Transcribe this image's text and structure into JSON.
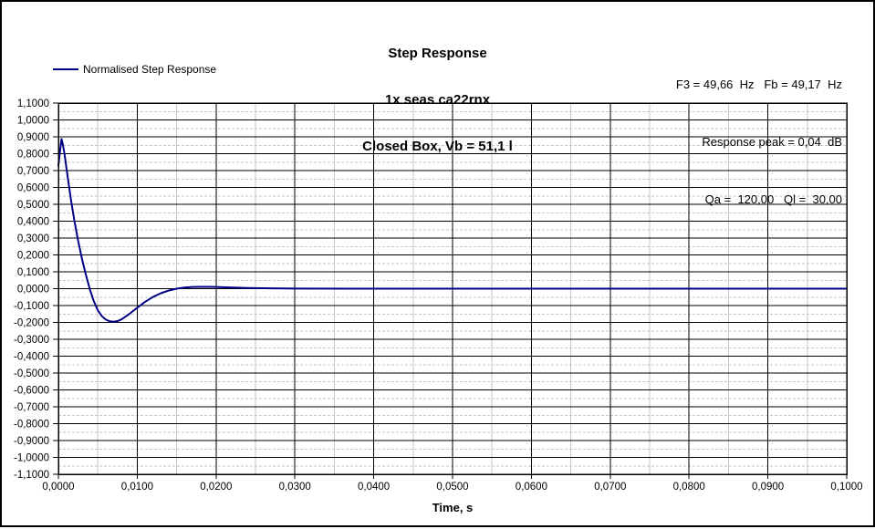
{
  "title": {
    "line1": "Step Response",
    "line2": "1x seas ca22rnx",
    "line3": "Closed Box, Vb = 51,1 l"
  },
  "info": {
    "line1": "F3 = 49,66  Hz   Fb = 49,17  Hz",
    "line2": "Response peak = 0,04  dB",
    "line3": "Qa =  120,00   Ql =  30,00"
  },
  "legend": {
    "label": "Normalised Step Response"
  },
  "colors": {
    "curve": "#000087",
    "grid_major": "#000000",
    "grid_minor": "#c6c6c6",
    "background": "#ffffff"
  },
  "chart_data": {
    "type": "line",
    "title": "Step Response",
    "subtitle1": "1x seas ca22rnx",
    "subtitle2": "Closed Box, Vb = 51,1 l",
    "xlabel": "Time, s",
    "ylabel": "",
    "xlim": [
      0,
      0.1
    ],
    "ylim": [
      -1.1,
      1.1
    ],
    "x_major_step": 0.01,
    "x_minor_step": 0.005,
    "y_major_step": 0.1,
    "y_minor_step": 0.05,
    "grid": true,
    "legend_position": "top-left",
    "x_ticks": [
      {
        "value": 0.0,
        "label": "0,0000"
      },
      {
        "value": 0.01,
        "label": "0,0100"
      },
      {
        "value": 0.02,
        "label": "0,0200"
      },
      {
        "value": 0.03,
        "label": "0,0300"
      },
      {
        "value": 0.04,
        "label": "0,0400"
      },
      {
        "value": 0.05,
        "label": "0,0500"
      },
      {
        "value": 0.06,
        "label": "0,0600"
      },
      {
        "value": 0.07,
        "label": "0,0700"
      },
      {
        "value": 0.08,
        "label": "0,0800"
      },
      {
        "value": 0.09,
        "label": "0,0900"
      },
      {
        "value": 0.1,
        "label": "0,1000"
      }
    ],
    "y_ticks": [
      {
        "value": 1.1,
        "label": "1,1000"
      },
      {
        "value": 1.0,
        "label": "1,0000"
      },
      {
        "value": 0.9,
        "label": "0,9000"
      },
      {
        "value": 0.8,
        "label": "0,8000"
      },
      {
        "value": 0.7,
        "label": "0,7000"
      },
      {
        "value": 0.6,
        "label": "0,6000"
      },
      {
        "value": 0.5,
        "label": "0,5000"
      },
      {
        "value": 0.4,
        "label": "0,4000"
      },
      {
        "value": 0.3,
        "label": "0,3000"
      },
      {
        "value": 0.2,
        "label": "0,2000"
      },
      {
        "value": 0.1,
        "label": "0,1000"
      },
      {
        "value": 0.0,
        "label": "0,0000"
      },
      {
        "value": -0.1,
        "label": "-0,1000"
      },
      {
        "value": -0.2,
        "label": "-0,2000"
      },
      {
        "value": -0.3,
        "label": "-0,3000"
      },
      {
        "value": -0.4,
        "label": "-0,4000"
      },
      {
        "value": -0.5,
        "label": "-0,5000"
      },
      {
        "value": -0.6,
        "label": "-0,6000"
      },
      {
        "value": -0.7,
        "label": "-0,7000"
      },
      {
        "value": -0.8,
        "label": "-0,8000"
      },
      {
        "value": -0.9,
        "label": "-0,9000"
      },
      {
        "value": -1.0,
        "label": "-1,0000"
      },
      {
        "value": -1.1,
        "label": "-1,1000"
      }
    ],
    "series": [
      {
        "name": "Normalised Step Response",
        "color": "#000087",
        "points": [
          [
            0.0,
            0.73
          ],
          [
            0.0002,
            0.812
          ],
          [
            0.0004,
            0.887
          ],
          [
            0.0006,
            0.846
          ],
          [
            0.0008,
            0.79
          ],
          [
            0.0012,
            0.655
          ],
          [
            0.0016,
            0.525
          ],
          [
            0.002,
            0.41
          ],
          [
            0.0025,
            0.285
          ],
          [
            0.003,
            0.175
          ],
          [
            0.0035,
            0.08
          ],
          [
            0.004,
            -0.005
          ],
          [
            0.0045,
            -0.075
          ],
          [
            0.005,
            -0.128
          ],
          [
            0.0055,
            -0.162
          ],
          [
            0.006,
            -0.183
          ],
          [
            0.0065,
            -0.193
          ],
          [
            0.007,
            -0.196
          ],
          [
            0.0075,
            -0.192
          ],
          [
            0.008,
            -0.182
          ],
          [
            0.009,
            -0.15
          ],
          [
            0.01,
            -0.113
          ],
          [
            0.011,
            -0.078
          ],
          [
            0.012,
            -0.049
          ],
          [
            0.013,
            -0.027
          ],
          [
            0.014,
            -0.011
          ],
          [
            0.015,
            0.0
          ],
          [
            0.016,
            0.007
          ],
          [
            0.017,
            0.01
          ],
          [
            0.018,
            0.011
          ],
          [
            0.019,
            0.011
          ],
          [
            0.02,
            0.01
          ],
          [
            0.022,
            0.007
          ],
          [
            0.024,
            0.004
          ],
          [
            0.027,
            0.002
          ],
          [
            0.03,
            0.001
          ],
          [
            0.04,
            0.0
          ],
          [
            0.05,
            0.0
          ],
          [
            0.06,
            0.0
          ],
          [
            0.07,
            0.0
          ],
          [
            0.08,
            0.0
          ],
          [
            0.09,
            0.0
          ],
          [
            0.1,
            0.0
          ]
        ]
      }
    ]
  }
}
